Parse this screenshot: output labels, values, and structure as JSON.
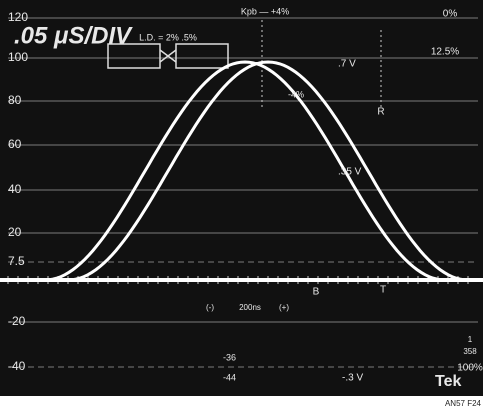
{
  "scale_left": [
    "120",
    "100",
    "80",
    "60",
    "40",
    "20",
    "7.5",
    "-20",
    "-40"
  ],
  "timebase": ".05 μS/DIV",
  "ld_label": "L.D. = 2% .5%",
  "kpb_plus": "Kpb — +4%",
  "kpb_minus": "-4%",
  "scale_right": [
    "0%",
    "12.5%",
    "100%"
  ],
  "volts": [
    ".7 V",
    ".35 V",
    "-.3 V"
  ],
  "markers": [
    "R",
    "B",
    "T"
  ],
  "time_markers": [
    "(-)",
    "200ns",
    "(+)"
  ],
  "lower_marks": [
    "-36",
    "-44"
  ],
  "fraction": {
    "num": "1",
    "den": "358"
  },
  "brand": "Tek",
  "caption": "AN57 F24"
}
